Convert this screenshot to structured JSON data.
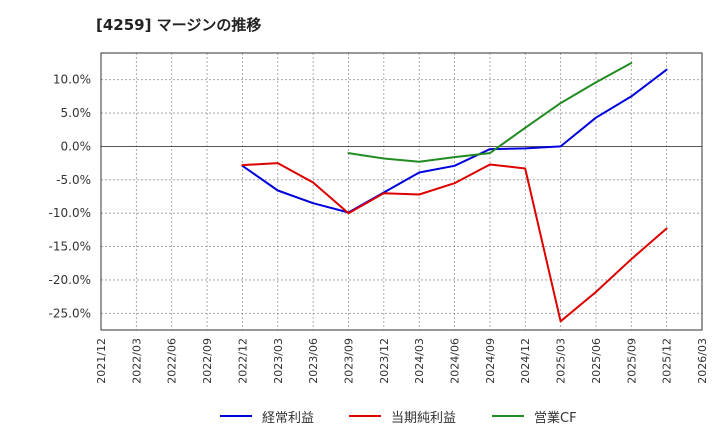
{
  "chart_data": {
    "type": "line",
    "title": "[4259]  マージンの推移",
    "xlabel": "",
    "ylabel": "",
    "ylim": [
      -27.5,
      14
    ],
    "yticks": [
      10,
      5,
      0,
      -5,
      -10,
      -15,
      -20,
      -25
    ],
    "ytick_labels": [
      "10.0%",
      "5.0%",
      "0.0%",
      "-5.0%",
      "-10.0%",
      "-15.0%",
      "-20.0%",
      "-25.0%"
    ],
    "x": [
      "2021/12",
      "2022/03",
      "2022/06",
      "2022/09",
      "2022/12",
      "2023/03",
      "2023/06",
      "2023/09",
      "2023/12",
      "2024/03",
      "2024/06",
      "2024/09",
      "2024/12",
      "2025/03",
      "2025/06",
      "2025/09",
      "2025/12",
      "2026/03"
    ],
    "grid": true,
    "legend_position": "bottom",
    "series": [
      {
        "name": "経常利益",
        "color": "#0000dd",
        "values": [
          null,
          null,
          null,
          null,
          -2.9,
          -6.6,
          -8.5,
          -9.9,
          -6.9,
          -3.9,
          -2.9,
          -0.4,
          -0.3,
          0.0,
          4.3,
          7.5,
          11.5,
          null
        ]
      },
      {
        "name": "当期純利益",
        "color": "#dd0000",
        "values": [
          null,
          null,
          null,
          null,
          -2.8,
          -2.5,
          -5.4,
          -10.0,
          -7.0,
          -7.2,
          -5.5,
          -2.7,
          -3.3,
          -26.2,
          -21.8,
          -16.9,
          -12.3,
          null
        ]
      },
      {
        "name": "営業CF",
        "color": "#228b22",
        "values": [
          null,
          null,
          null,
          null,
          null,
          null,
          null,
          -1.0,
          -1.8,
          -2.3,
          -1.6,
          -1.0,
          2.8,
          6.5,
          9.6,
          12.5,
          null,
          null
        ]
      }
    ]
  }
}
